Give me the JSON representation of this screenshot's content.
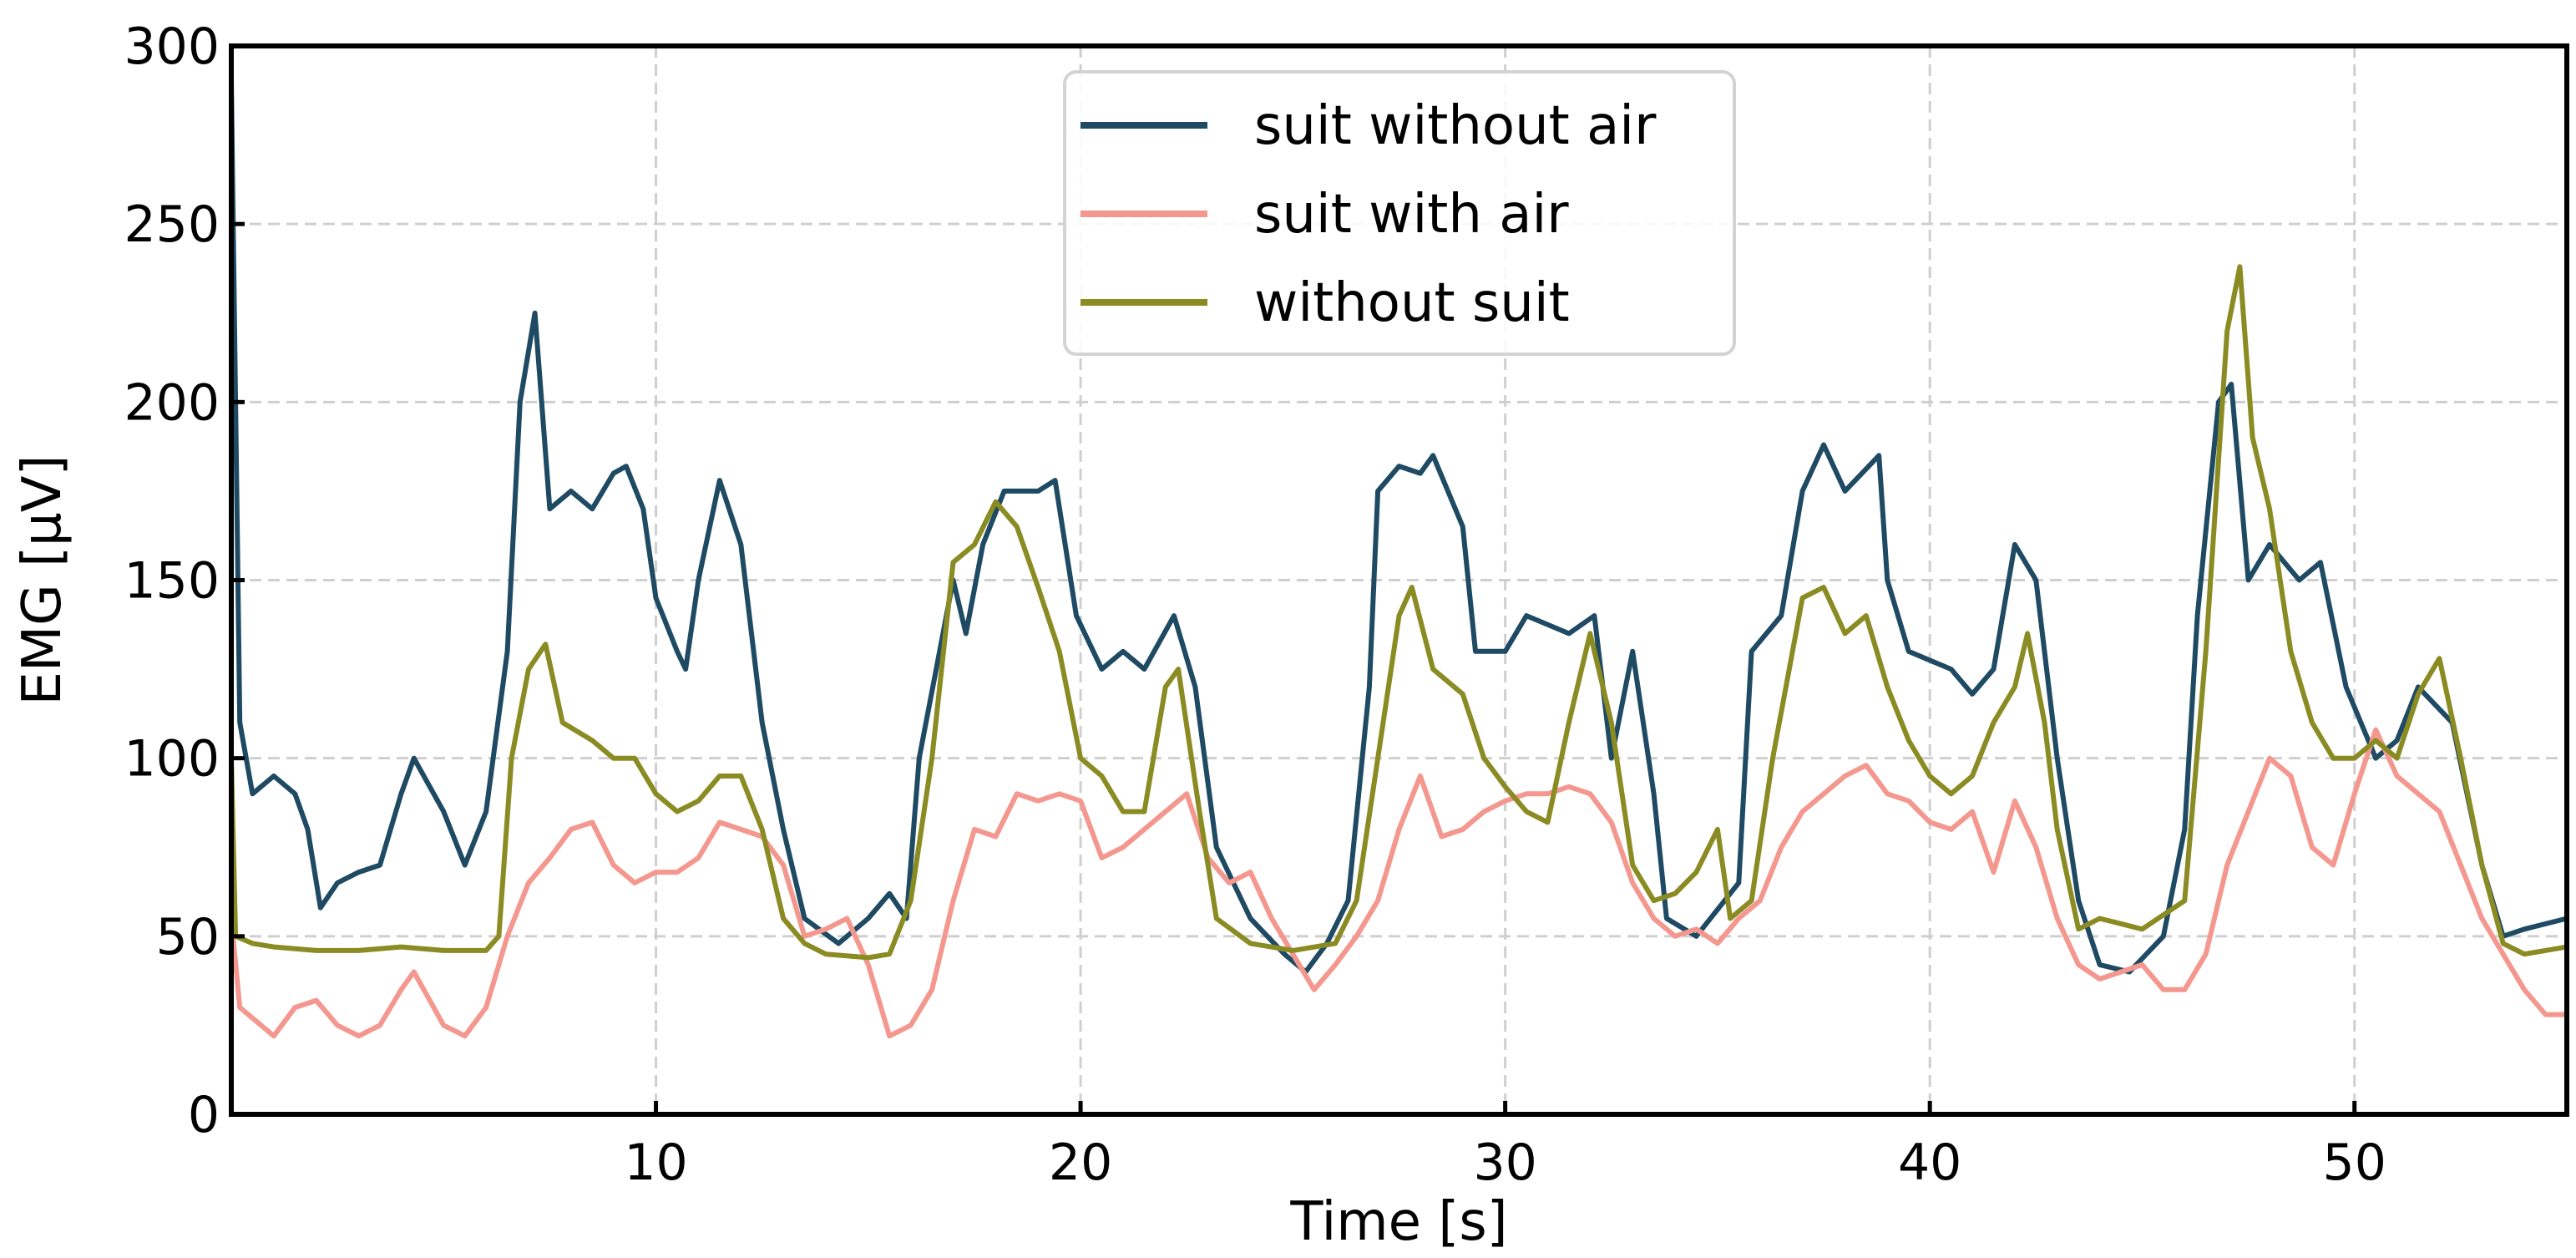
{
  "chart_data": {
    "type": "line",
    "title": "",
    "xlabel": "Time [s]",
    "ylabel": "EMG [μV]",
    "xlim": [
      0,
      55
    ],
    "ylim": [
      0,
      300
    ],
    "xticks": [
      10,
      20,
      30,
      40,
      50
    ],
    "yticks": [
      0,
      50,
      100,
      150,
      200,
      250,
      300
    ],
    "grid": true,
    "legend_position": "top-center",
    "series": [
      {
        "name": "suit without air",
        "color": "#1f4a63",
        "points": [
          [
            0,
            290
          ],
          [
            0.2,
            110
          ],
          [
            0.5,
            90
          ],
          [
            1,
            95
          ],
          [
            1.5,
            90
          ],
          [
            1.8,
            80
          ],
          [
            2.1,
            58
          ],
          [
            2.5,
            65
          ],
          [
            3,
            68
          ],
          [
            3.5,
            70
          ],
          [
            4,
            90
          ],
          [
            4.3,
            100
          ],
          [
            5,
            85
          ],
          [
            5.5,
            70
          ],
          [
            6,
            85
          ],
          [
            6.5,
            130
          ],
          [
            6.8,
            200
          ],
          [
            7.15,
            225
          ],
          [
            7.5,
            170
          ],
          [
            8,
            175
          ],
          [
            8.5,
            170
          ],
          [
            9,
            180
          ],
          [
            9.3,
            182
          ],
          [
            9.7,
            170
          ],
          [
            10,
            145
          ],
          [
            10.5,
            130
          ],
          [
            10.7,
            125
          ],
          [
            11,
            150
          ],
          [
            11.5,
            178
          ],
          [
            12,
            160
          ],
          [
            12.5,
            110
          ],
          [
            13,
            80
          ],
          [
            13.5,
            55
          ],
          [
            14.3,
            48
          ],
          [
            15,
            55
          ],
          [
            15.5,
            62
          ],
          [
            15.9,
            55
          ],
          [
            16.2,
            100
          ],
          [
            16.6,
            125
          ],
          [
            17,
            150
          ],
          [
            17.3,
            135
          ],
          [
            17.7,
            160
          ],
          [
            18.2,
            175
          ],
          [
            19,
            175
          ],
          [
            19.4,
            178
          ],
          [
            19.9,
            140
          ],
          [
            20.5,
            125
          ],
          [
            21,
            130
          ],
          [
            21.5,
            125
          ],
          [
            22.2,
            140
          ],
          [
            22.7,
            120
          ],
          [
            23.2,
            75
          ],
          [
            24,
            55
          ],
          [
            24.8,
            45
          ],
          [
            25.3,
            40
          ],
          [
            25.8,
            48
          ],
          [
            26.3,
            60
          ],
          [
            26.8,
            120
          ],
          [
            27,
            175
          ],
          [
            27.5,
            182
          ],
          [
            28,
            180
          ],
          [
            28.3,
            185
          ],
          [
            29,
            165
          ],
          [
            29.3,
            130
          ],
          [
            30,
            130
          ],
          [
            30.5,
            140
          ],
          [
            31.5,
            135
          ],
          [
            32.1,
            140
          ],
          [
            32.5,
            100
          ],
          [
            33,
            130
          ],
          [
            33.5,
            90
          ],
          [
            33.8,
            55
          ],
          [
            34.5,
            50
          ],
          [
            35.5,
            65
          ],
          [
            35.8,
            130
          ],
          [
            36.5,
            140
          ],
          [
            37,
            175
          ],
          [
            37.5,
            188
          ],
          [
            38,
            175
          ],
          [
            38.8,
            185
          ],
          [
            39,
            150
          ],
          [
            39.5,
            130
          ],
          [
            40.5,
            125
          ],
          [
            41,
            118
          ],
          [
            41.5,
            125
          ],
          [
            42,
            160
          ],
          [
            42.5,
            150
          ],
          [
            43,
            100
          ],
          [
            43.5,
            60
          ],
          [
            44,
            42
          ],
          [
            44.7,
            40
          ],
          [
            45.5,
            50
          ],
          [
            46,
            80
          ],
          [
            46.3,
            140
          ],
          [
            46.8,
            200
          ],
          [
            47.1,
            205
          ],
          [
            47.5,
            150
          ],
          [
            48,
            160
          ],
          [
            48.7,
            150
          ],
          [
            49.2,
            155
          ],
          [
            49.8,
            120
          ],
          [
            50.5,
            100
          ],
          [
            51,
            105
          ],
          [
            51.5,
            120
          ],
          [
            52.3,
            110
          ],
          [
            53,
            70
          ],
          [
            53.5,
            50
          ],
          [
            54,
            52
          ],
          [
            55,
            55
          ]
        ]
      },
      {
        "name": "suit with air",
        "color": "#f4978e",
        "points": [
          [
            0,
            55
          ],
          [
            0.2,
            30
          ],
          [
            1,
            22
          ],
          [
            1.5,
            30
          ],
          [
            2,
            32
          ],
          [
            2.5,
            25
          ],
          [
            3,
            22
          ],
          [
            3.5,
            25
          ],
          [
            4,
            35
          ],
          [
            4.3,
            40
          ],
          [
            5,
            25
          ],
          [
            5.5,
            22
          ],
          [
            6,
            30
          ],
          [
            6.5,
            50
          ],
          [
            7,
            65
          ],
          [
            7.5,
            72
          ],
          [
            8,
            80
          ],
          [
            8.5,
            82
          ],
          [
            9,
            70
          ],
          [
            9.5,
            65
          ],
          [
            10,
            68
          ],
          [
            10.5,
            68
          ],
          [
            11,
            72
          ],
          [
            11.5,
            82
          ],
          [
            12,
            80
          ],
          [
            12.5,
            78
          ],
          [
            13,
            70
          ],
          [
            13.5,
            50
          ],
          [
            14,
            52
          ],
          [
            14.5,
            55
          ],
          [
            15,
            42
          ],
          [
            15.5,
            22
          ],
          [
            16,
            25
          ],
          [
            16.5,
            35
          ],
          [
            17,
            60
          ],
          [
            17.5,
            80
          ],
          [
            18,
            78
          ],
          [
            18.5,
            90
          ],
          [
            19,
            88
          ],
          [
            19.5,
            90
          ],
          [
            20,
            88
          ],
          [
            20.5,
            72
          ],
          [
            21,
            75
          ],
          [
            21.5,
            80
          ],
          [
            22,
            85
          ],
          [
            22.5,
            90
          ],
          [
            23,
            72
          ],
          [
            23.5,
            65
          ],
          [
            24,
            68
          ],
          [
            24.5,
            55
          ],
          [
            25,
            45
          ],
          [
            25.5,
            35
          ],
          [
            26,
            42
          ],
          [
            26.5,
            50
          ],
          [
            27,
            60
          ],
          [
            27.5,
            80
          ],
          [
            28,
            95
          ],
          [
            28.5,
            78
          ],
          [
            29,
            80
          ],
          [
            29.5,
            85
          ],
          [
            30,
            88
          ],
          [
            30.5,
            90
          ],
          [
            31,
            90
          ],
          [
            31.5,
            92
          ],
          [
            32,
            90
          ],
          [
            32.5,
            82
          ],
          [
            33,
            65
          ],
          [
            33.5,
            55
          ],
          [
            34,
            50
          ],
          [
            34.5,
            52
          ],
          [
            35,
            48
          ],
          [
            35.5,
            55
          ],
          [
            36,
            60
          ],
          [
            36.5,
            75
          ],
          [
            37,
            85
          ],
          [
            37.5,
            90
          ],
          [
            38,
            95
          ],
          [
            38.5,
            98
          ],
          [
            39,
            90
          ],
          [
            39.5,
            88
          ],
          [
            40,
            82
          ],
          [
            40.5,
            80
          ],
          [
            41,
            85
          ],
          [
            41.5,
            68
          ],
          [
            42,
            88
          ],
          [
            42.5,
            75
          ],
          [
            43,
            55
          ],
          [
            43.5,
            42
          ],
          [
            44,
            38
          ],
          [
            44.5,
            40
          ],
          [
            45,
            42
          ],
          [
            45.5,
            35
          ],
          [
            46,
            35
          ],
          [
            46.5,
            45
          ],
          [
            47,
            70
          ],
          [
            47.5,
            85
          ],
          [
            48,
            100
          ],
          [
            48.5,
            95
          ],
          [
            49,
            75
          ],
          [
            49.5,
            70
          ],
          [
            50,
            90
          ],
          [
            50.5,
            108
          ],
          [
            51,
            95
          ],
          [
            51.5,
            90
          ],
          [
            52,
            85
          ],
          [
            52.5,
            70
          ],
          [
            53,
            55
          ],
          [
            53.5,
            45
          ],
          [
            54,
            35
          ],
          [
            54.5,
            28
          ],
          [
            55,
            28
          ]
        ]
      },
      {
        "name": "without suit",
        "color": "#8b8b23",
        "points": [
          [
            0,
            100
          ],
          [
            0.1,
            50
          ],
          [
            0.5,
            48
          ],
          [
            1,
            47
          ],
          [
            2,
            46
          ],
          [
            3,
            46
          ],
          [
            4,
            47
          ],
          [
            5,
            46
          ],
          [
            6,
            46
          ],
          [
            6.3,
            50
          ],
          [
            6.6,
            100
          ],
          [
            7,
            125
          ],
          [
            7.4,
            132
          ],
          [
            7.8,
            110
          ],
          [
            8.5,
            105
          ],
          [
            9,
            100
          ],
          [
            9.5,
            100
          ],
          [
            10,
            90
          ],
          [
            10.5,
            85
          ],
          [
            11,
            88
          ],
          [
            11.5,
            95
          ],
          [
            12,
            95
          ],
          [
            12.5,
            80
          ],
          [
            13,
            55
          ],
          [
            13.5,
            48
          ],
          [
            14,
            45
          ],
          [
            15,
            44
          ],
          [
            15.5,
            45
          ],
          [
            16,
            60
          ],
          [
            16.5,
            100
          ],
          [
            17,
            155
          ],
          [
            17.5,
            160
          ],
          [
            18,
            172
          ],
          [
            18.5,
            165
          ],
          [
            19,
            148
          ],
          [
            19.5,
            130
          ],
          [
            20,
            100
          ],
          [
            20.5,
            95
          ],
          [
            21,
            85
          ],
          [
            21.5,
            85
          ],
          [
            22,
            120
          ],
          [
            22.3,
            125
          ],
          [
            22.8,
            85
          ],
          [
            23.2,
            55
          ],
          [
            24,
            48
          ],
          [
            25,
            46
          ],
          [
            26,
            48
          ],
          [
            26.5,
            60
          ],
          [
            27,
            100
          ],
          [
            27.5,
            140
          ],
          [
            27.8,
            148
          ],
          [
            28.3,
            125
          ],
          [
            29,
            118
          ],
          [
            29.5,
            100
          ],
          [
            30,
            92
          ],
          [
            30.5,
            85
          ],
          [
            31,
            82
          ],
          [
            31.5,
            110
          ],
          [
            32,
            135
          ],
          [
            32.5,
            110
          ],
          [
            33,
            70
          ],
          [
            33.5,
            60
          ],
          [
            34,
            62
          ],
          [
            34.5,
            68
          ],
          [
            35,
            80
          ],
          [
            35.3,
            55
          ],
          [
            35.8,
            60
          ],
          [
            36.3,
            100
          ],
          [
            37,
            145
          ],
          [
            37.5,
            148
          ],
          [
            38,
            135
          ],
          [
            38.5,
            140
          ],
          [
            39,
            120
          ],
          [
            39.5,
            105
          ],
          [
            40,
            95
          ],
          [
            40.5,
            90
          ],
          [
            41,
            95
          ],
          [
            41.5,
            110
          ],
          [
            42,
            120
          ],
          [
            42.3,
            135
          ],
          [
            42.7,
            110
          ],
          [
            43,
            80
          ],
          [
            43.5,
            52
          ],
          [
            44,
            55
          ],
          [
            45,
            52
          ],
          [
            46,
            60
          ],
          [
            46.5,
            130
          ],
          [
            47,
            220
          ],
          [
            47.3,
            238
          ],
          [
            47.6,
            190
          ],
          [
            48,
            170
          ],
          [
            48.5,
            130
          ],
          [
            49,
            110
          ],
          [
            49.5,
            100
          ],
          [
            50,
            100
          ],
          [
            50.5,
            105
          ],
          [
            51,
            100
          ],
          [
            51.5,
            118
          ],
          [
            52,
            128
          ],
          [
            52.5,
            100
          ],
          [
            53,
            70
          ],
          [
            53.5,
            48
          ],
          [
            54,
            45
          ],
          [
            55,
            47
          ]
        ]
      }
    ]
  }
}
